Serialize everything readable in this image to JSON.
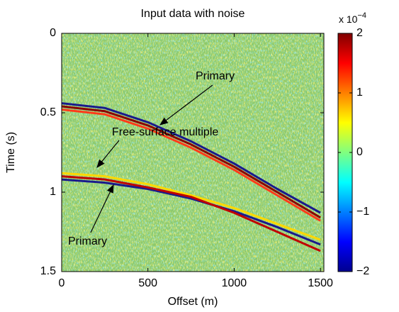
{
  "chart_data": {
    "type": "seismic",
    "title": "Input data with noise",
    "x_label": "Offset (m)",
    "y_label": "Time (s)",
    "xlim": [
      0,
      1520
    ],
    "xticks": [
      0,
      500,
      1000,
      1500
    ],
    "ylim": [
      0,
      1.5
    ],
    "yticks": [
      0,
      0.5,
      1,
      1.5
    ],
    "x": [
      0,
      250,
      500,
      750,
      1000,
      1250,
      1500
    ],
    "series": [
      {
        "color": "#8b0000",
        "values": [
          0.46,
          0.49,
          0.58,
          0.7,
          0.84,
          1.0,
          1.16
        ]
      },
      {
        "color": "#1a1a8c",
        "values": [
          0.44,
          0.47,
          0.56,
          0.68,
          0.82,
          0.98,
          1.13
        ]
      },
      {
        "color": "#ff3a1a",
        "values": [
          0.48,
          0.51,
          0.6,
          0.72,
          0.86,
          1.02,
          1.18
        ]
      },
      {
        "color": "#ffd800",
        "values": [
          0.88,
          0.9,
          0.95,
          1.02,
          1.1,
          1.2,
          1.3
        ]
      },
      {
        "color": "#1a1a8c",
        "values": [
          0.92,
          0.94,
          0.98,
          1.04,
          1.12,
          1.22,
          1.33
        ]
      },
      {
        "color": "#c00000",
        "values": [
          0.9,
          0.92,
          0.97,
          1.03,
          1.13,
          1.25,
          1.37
        ]
      }
    ],
    "annotations": [
      "Primary",
      "Free-surface multiple",
      "Primary"
    ],
    "colorbar": {
      "lim": [
        -2,
        2
      ],
      "ticks": [
        {
          "value": -2,
          "label": "−2"
        },
        {
          "value": -1,
          "label": "−1"
        },
        0,
        1,
        2
      ],
      "scale": "x 10",
      "exponent": "−4"
    }
  }
}
